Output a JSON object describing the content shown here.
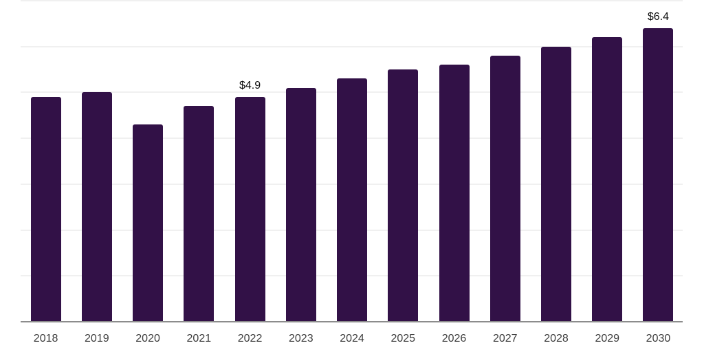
{
  "chart_data": {
    "type": "bar",
    "categories": [
      "2018",
      "2019",
      "2020",
      "2021",
      "2022",
      "2023",
      "2024",
      "2025",
      "2026",
      "2027",
      "2028",
      "2029",
      "2030"
    ],
    "values": [
      4.9,
      5.0,
      4.3,
      4.7,
      4.9,
      5.1,
      5.3,
      5.5,
      5.6,
      5.8,
      6.0,
      6.2,
      6.4
    ],
    "value_labels": [
      "",
      "",
      "",
      "",
      "$4.9",
      "",
      "",
      "",
      "",
      "",
      "",
      "",
      "$6.4"
    ],
    "title": "",
    "xlabel": "",
    "ylabel": "",
    "ylim": [
      0,
      7
    ],
    "gridline_step": 1,
    "grid": true,
    "legend": false,
    "colors": {
      "bar": "#321147",
      "gridline": "#f0f0f0",
      "axis_line": "#8c8c8c",
      "tick_label": "#3d3d3d",
      "value_label": "#0d0d0d"
    }
  }
}
